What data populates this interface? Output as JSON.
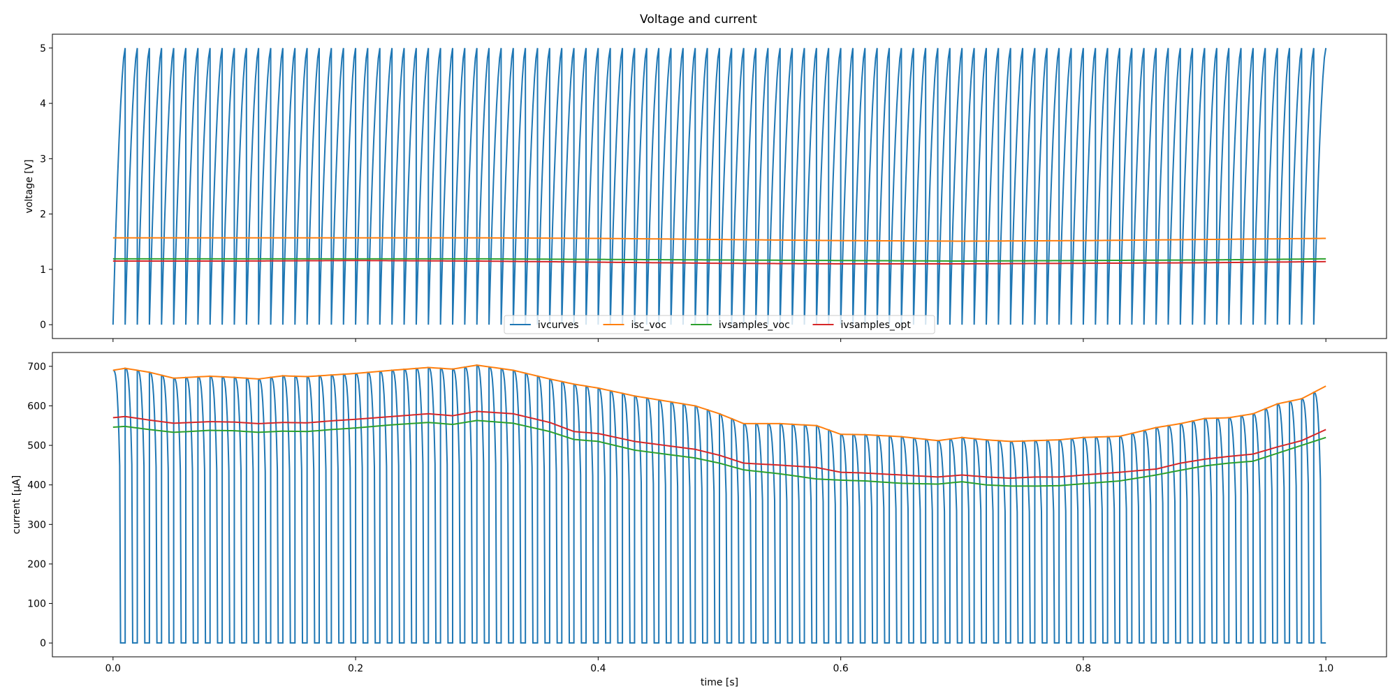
{
  "figure": {
    "title": "Voltage and current"
  },
  "colors": {
    "ivcurves": "#1f77b4",
    "isc_voc": "#ff7f0e",
    "ivsamples_voc": "#2ca02c",
    "ivsamples_opt": "#d62728"
  },
  "chart_data": [
    {
      "type": "line",
      "panel": "top",
      "ylabel": "voltage [V]",
      "xlim": [
        -0.05,
        1.05
      ],
      "ylim": [
        -0.25,
        5.25
      ],
      "yticks": [
        0,
        1,
        2,
        3,
        4,
        5
      ],
      "ytick_labels": [
        "0",
        "1",
        "2",
        "3",
        "4",
        "5"
      ],
      "xticks": [
        0.0,
        0.2,
        0.4,
        0.6,
        0.8,
        1.0
      ],
      "legend": {
        "placement": "lower center",
        "ncol": 4,
        "entries": [
          "ivcurves",
          "isc_voc",
          "ivsamples_voc",
          "ivsamples_opt"
        ]
      },
      "series": [
        {
          "name": "ivcurves",
          "kind": "sawtooth",
          "cycles": 100,
          "min": 0,
          "max": 5
        },
        {
          "name": "isc_voc",
          "x": [
            0.0,
            0.1,
            0.2,
            0.3,
            0.4,
            0.5,
            0.6,
            0.7,
            0.8,
            0.9,
            1.0
          ],
          "values": [
            1.57,
            1.57,
            1.57,
            1.57,
            1.56,
            1.54,
            1.52,
            1.51,
            1.52,
            1.54,
            1.56
          ]
        },
        {
          "name": "ivsamples_voc",
          "x": [
            0.0,
            0.1,
            0.2,
            0.3,
            0.4,
            0.5,
            0.6,
            0.7,
            0.8,
            0.9,
            1.0
          ],
          "values": [
            1.19,
            1.19,
            1.19,
            1.19,
            1.18,
            1.17,
            1.16,
            1.15,
            1.16,
            1.17,
            1.19
          ]
        },
        {
          "name": "ivsamples_opt",
          "x": [
            0.0,
            0.1,
            0.2,
            0.3,
            0.4,
            0.5,
            0.6,
            0.7,
            0.8,
            0.9,
            1.0
          ],
          "values": [
            1.15,
            1.15,
            1.16,
            1.15,
            1.13,
            1.11,
            1.1,
            1.1,
            1.11,
            1.12,
            1.14
          ]
        }
      ]
    },
    {
      "type": "line",
      "panel": "bottom",
      "xlabel": "time [s]",
      "ylabel": "current [μA]",
      "xlim": [
        -0.05,
        1.05
      ],
      "ylim": [
        -35,
        735
      ],
      "yticks": [
        0,
        100,
        200,
        300,
        400,
        500,
        600,
        700
      ],
      "ytick_labels": [
        "0",
        "100",
        "200",
        "300",
        "400",
        "500",
        "600",
        "700"
      ],
      "xticks": [
        0.0,
        0.2,
        0.4,
        0.6,
        0.8,
        1.0
      ],
      "xtick_labels": [
        "0.0",
        "0.2",
        "0.4",
        "0.6",
        "0.8",
        "1.0"
      ],
      "series": [
        {
          "name": "ivcurves",
          "kind": "pulses",
          "cycles": 100,
          "min": 0,
          "max_follows": "isc_voc"
        },
        {
          "name": "isc_voc",
          "x": [
            0.0,
            0.01,
            0.03,
            0.05,
            0.08,
            0.1,
            0.12,
            0.14,
            0.16,
            0.18,
            0.2,
            0.23,
            0.26,
            0.28,
            0.3,
            0.33,
            0.36,
            0.38,
            0.4,
            0.43,
            0.45,
            0.48,
            0.5,
            0.52,
            0.55,
            0.58,
            0.6,
            0.62,
            0.65,
            0.68,
            0.7,
            0.72,
            0.74,
            0.76,
            0.78,
            0.8,
            0.83,
            0.86,
            0.88,
            0.9,
            0.92,
            0.94,
            0.96,
            0.98,
            1.0
          ],
          "values": [
            690,
            695,
            685,
            670,
            675,
            672,
            668,
            676,
            674,
            678,
            682,
            690,
            697,
            693,
            703,
            690,
            668,
            655,
            645,
            625,
            615,
            600,
            580,
            555,
            555,
            550,
            528,
            527,
            522,
            512,
            520,
            514,
            510,
            512,
            514,
            520,
            523,
            545,
            555,
            568,
            570,
            580,
            605,
            618,
            650
          ]
        },
        {
          "name": "ivsamples_voc",
          "x": [
            0.0,
            0.01,
            0.03,
            0.05,
            0.08,
            0.1,
            0.12,
            0.14,
            0.16,
            0.18,
            0.2,
            0.23,
            0.26,
            0.28,
            0.3,
            0.33,
            0.36,
            0.38,
            0.4,
            0.43,
            0.45,
            0.48,
            0.5,
            0.52,
            0.55,
            0.58,
            0.6,
            0.62,
            0.65,
            0.68,
            0.7,
            0.72,
            0.74,
            0.76,
            0.78,
            0.8,
            0.83,
            0.86,
            0.88,
            0.9,
            0.92,
            0.94,
            0.96,
            0.98,
            1.0
          ],
          "values": [
            546,
            548,
            540,
            533,
            538,
            537,
            533,
            536,
            535,
            540,
            544,
            552,
            558,
            553,
            563,
            556,
            535,
            515,
            510,
            488,
            480,
            468,
            455,
            438,
            428,
            415,
            412,
            410,
            404,
            402,
            408,
            400,
            397,
            397,
            398,
            403,
            410,
            425,
            437,
            448,
            455,
            460,
            480,
            500,
            520
          ]
        },
        {
          "name": "ivsamples_opt",
          "x": [
            0.0,
            0.01,
            0.03,
            0.05,
            0.08,
            0.1,
            0.12,
            0.14,
            0.16,
            0.18,
            0.2,
            0.23,
            0.26,
            0.28,
            0.3,
            0.33,
            0.36,
            0.38,
            0.4,
            0.43,
            0.45,
            0.48,
            0.5,
            0.52,
            0.55,
            0.58,
            0.6,
            0.62,
            0.65,
            0.68,
            0.7,
            0.72,
            0.74,
            0.76,
            0.78,
            0.8,
            0.83,
            0.86,
            0.88,
            0.9,
            0.92,
            0.94,
            0.96,
            0.98,
            1.0
          ],
          "values": [
            570,
            573,
            564,
            556,
            560,
            559,
            555,
            558,
            557,
            562,
            566,
            573,
            580,
            575,
            586,
            580,
            558,
            535,
            530,
            510,
            502,
            490,
            475,
            455,
            450,
            444,
            432,
            430,
            425,
            420,
            425,
            420,
            417,
            420,
            420,
            425,
            432,
            440,
            455,
            465,
            472,
            478,
            496,
            512,
            540
          ]
        }
      ]
    }
  ]
}
